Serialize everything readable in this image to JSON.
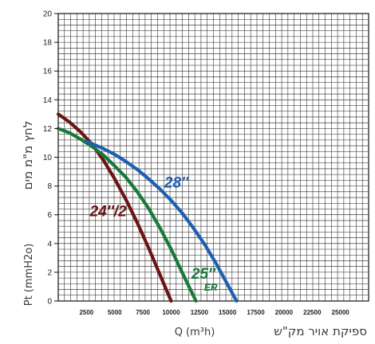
{
  "chart_data": {
    "type": "line",
    "grid": true,
    "xlim": [
      0,
      27500
    ],
    "ylim": [
      0,
      20
    ],
    "x_ticks": [
      "2500",
      "5000",
      "7500",
      "10000",
      "12500",
      "15000",
      "17500",
      "20000",
      "22500",
      "25000"
    ],
    "y_ticks": [
      "0",
      "2",
      "4",
      "6",
      "8",
      "10",
      "12",
      "14",
      "16",
      "18",
      "20"
    ],
    "xlabel": "ספיקת אויר מק\"ש",
    "xlabel_unit": "Q (m³h)",
    "ylabel": "לחץ מ\"מ מים",
    "ylabel_unit": "Pt (mmH2o)",
    "series": [
      {
        "name": "24''/2",
        "color": "#6b1414",
        "x": [
          0,
          1000,
          2000,
          3000,
          4000,
          5000,
          6000,
          7000,
          8000,
          9000,
          10000
        ],
        "y": [
          13.0,
          12.45,
          11.75,
          10.9,
          9.8,
          8.5,
          7.05,
          5.45,
          3.7,
          1.85,
          0
        ]
      },
      {
        "name": "25''",
        "name_sub": "ER",
        "color": "#177a3a",
        "x": [
          0,
          1000,
          2000,
          3000,
          4000,
          5000,
          6000,
          7000,
          8000,
          9000,
          10000,
          11000,
          12200
        ],
        "y": [
          12.0,
          11.7,
          11.25,
          10.75,
          10.15,
          9.4,
          8.6,
          7.6,
          6.45,
          5.1,
          3.6,
          1.95,
          0
        ]
      },
      {
        "name": "28''",
        "color": "#1f5fb0",
        "x": [
          2500,
          3000,
          4000,
          5000,
          6000,
          7000,
          8000,
          9000,
          10000,
          11000,
          12000,
          13000,
          14000,
          15000,
          15800
        ],
        "y": [
          11.1,
          10.95,
          10.6,
          10.2,
          9.7,
          9.15,
          8.5,
          7.8,
          7.0,
          6.1,
          5.05,
          3.9,
          2.6,
          1.15,
          0
        ]
      }
    ]
  }
}
